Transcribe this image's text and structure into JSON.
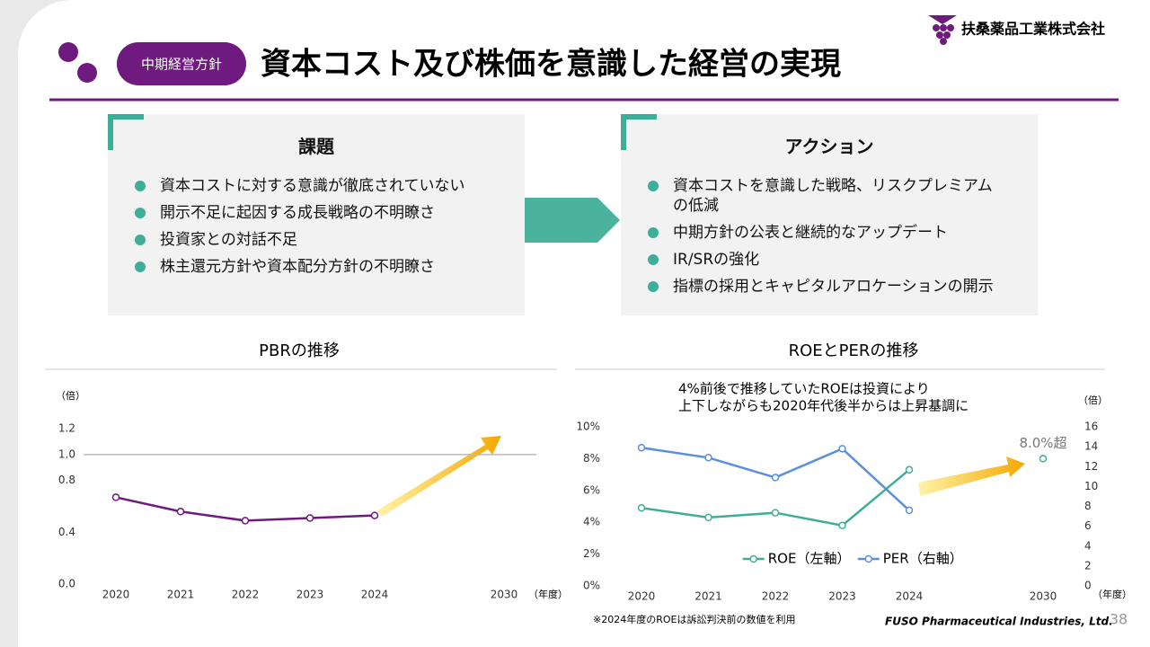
{
  "header": {
    "section": "中期経営方針",
    "title": "資本コスト及び株価を意識した経営の実現",
    "company": "扶桑薬品工業株式会社"
  },
  "panels": [
    {
      "title": "課題",
      "items": [
        "資本コストに対する意識が徹底されていない",
        "開示不足に起因する成長戦略の不明瞭さ",
        "投資家との対話不足",
        "株主還元方針や資本配分方針の不明瞭さ"
      ]
    },
    {
      "title": "アクション",
      "items": [
        "資本コストを意識した戦略、リスクプレミアムの低減",
        "中期方針の公表と継続的なアップデート",
        "IR/SRの強化",
        "指標の採用とキャピタルアロケーションの開示"
      ]
    }
  ],
  "chart_data": [
    {
      "type": "line",
      "title": "PBRの推移",
      "y_unit": "（倍）",
      "x_unit": "（年度）",
      "categories": [
        "2020",
        "2021",
        "2022",
        "2023",
        "2024",
        null,
        "2030"
      ],
      "values": [
        0.67,
        0.56,
        0.49,
        0.51,
        0.53,
        null,
        null
      ],
      "color": "#6e1a7e",
      "ylim": [
        0,
        1.2
      ],
      "yticks": [
        {
          "value": 0,
          "label": "0.0"
        },
        0.4,
        0.8,
        {
          "value": 1,
          "label": "1.0"
        },
        1.2
      ],
      "reference_line": 1,
      "grid": false
    },
    {
      "type": "line",
      "title": "ROEとPERの推移",
      "annotation": [
        "4%前後で推移していたROEは投資により",
        "上下しながらも2020年代後半からは上昇基調に"
      ],
      "y2_unit": "（倍）",
      "x_unit": "（年度）",
      "categories": [
        "2020",
        "2021",
        "2022",
        "2023",
        "2024",
        null,
        "2030"
      ],
      "series": [
        {
          "name": "ROE（左軸）",
          "color": "#3fae98",
          "values": [
            4.9,
            4.3,
            4.6,
            3.8,
            7.3,
            null,
            8.0
          ],
          "value_labels": [
            null,
            null,
            null,
            null,
            null,
            null,
            "8.0%超"
          ]
        },
        {
          "name": "PER（右軸）",
          "color": "#5b8fd9",
          "axis": "y2",
          "values": [
            13.9,
            12.9,
            10.9,
            13.8,
            7.6,
            null,
            null
          ]
        }
      ],
      "ylim": [
        0,
        10
      ],
      "yticks": [
        {
          "value": 0,
          "label": "0%"
        },
        {
          "value": 2,
          "label": "2%"
        },
        {
          "value": 4,
          "label": "4%"
        },
        {
          "value": 6,
          "label": "6%"
        },
        {
          "value": 8,
          "label": "8%"
        },
        {
          "value": 10,
          "label": "10%"
        }
      ],
      "y2lim": [
        0,
        16
      ],
      "y2ticks": [
        0,
        2,
        4,
        6,
        8,
        10,
        12,
        14,
        16
      ],
      "grid": false
    }
  ],
  "footnote": "※2024年度のROEは訴訟判決前の数値を利用",
  "footer": {
    "company": "FUSO Pharmaceutical Industries, Ltd.",
    "page": "38"
  }
}
